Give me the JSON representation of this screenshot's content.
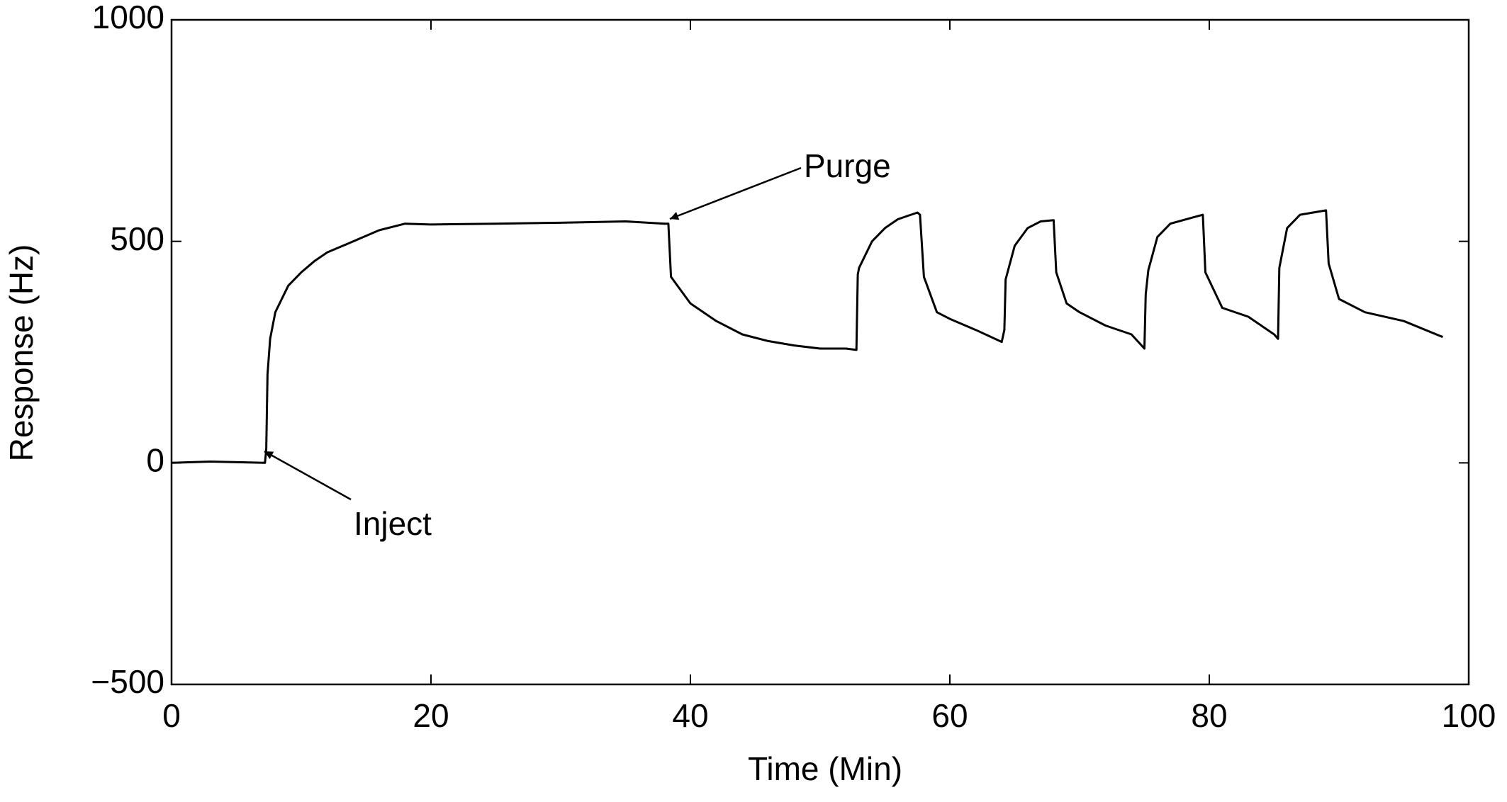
{
  "chart_data": {
    "type": "line",
    "x_label": "Time (Min)",
    "y_label": "Response (Hz)",
    "annotations": [
      "Purge",
      "Inject"
    ],
    "color": "#000000",
    "x": [
      0,
      3,
      7.2,
      7.3,
      7.4,
      7.6,
      8,
      9,
      10,
      11,
      12,
      14,
      16,
      18,
      20,
      25,
      30,
      35,
      38,
      38.3,
      38.5,
      39,
      40,
      42,
      44,
      46,
      48,
      50,
      52,
      52.8,
      52.9,
      53,
      54,
      55,
      56,
      57.5,
      57.7,
      58,
      59,
      60,
      62,
      64,
      64.2,
      64.3,
      65,
      66,
      67,
      68,
      68.2,
      69,
      70,
      72,
      74,
      75,
      75.1,
      75.3,
      76,
      77,
      79.5,
      79.7,
      81,
      83,
      85,
      85.3,
      85.4,
      86,
      87,
      89,
      89.2,
      90,
      92,
      95,
      98
    ],
    "values": [
      0,
      3,
      0,
      30,
      200,
      280,
      340,
      400,
      430,
      455,
      475,
      500,
      525,
      540,
      538,
      540,
      542,
      545,
      540,
      540,
      420,
      400,
      360,
      320,
      290,
      275,
      265,
      258,
      258,
      255,
      425,
      440,
      500,
      530,
      550,
      565,
      560,
      420,
      340,
      325,
      300,
      273,
      300,
      414,
      490,
      530,
      545,
      548,
      430,
      360,
      340,
      310,
      290,
      258,
      380,
      435,
      510,
      540,
      560,
      430,
      350,
      330,
      290,
      280,
      440,
      530,
      560,
      570,
      450,
      370,
      340,
      320,
      284
    ],
    "xlim": [
      0,
      100
    ],
    "ylim": [
      -500,
      1000
    ],
    "xticks": [
      0,
      20,
      40,
      60,
      80,
      100
    ],
    "yticks": [
      {
        "value": -500,
        "label": "−500"
      },
      0,
      500,
      1000
    ],
    "grid": false
  }
}
